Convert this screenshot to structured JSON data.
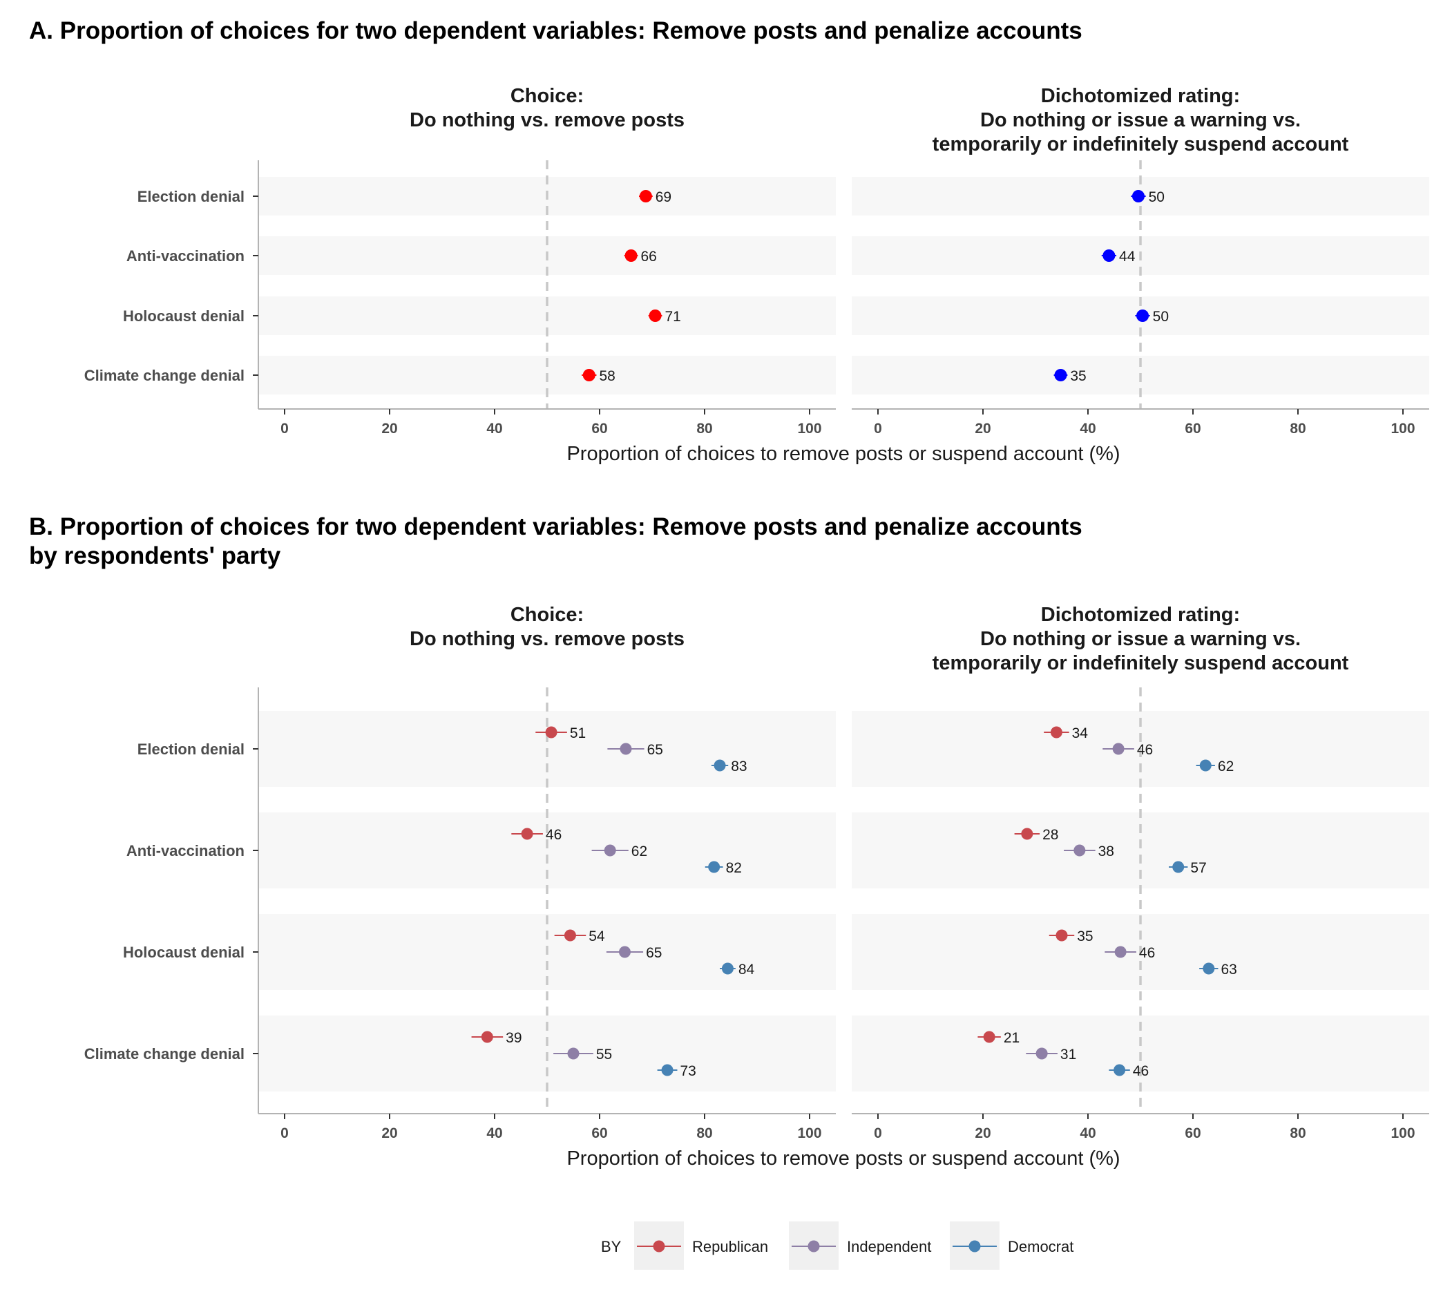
{
  "colors": {
    "panel_a_choice": "#ff0000",
    "panel_a_rating": "#0000ff",
    "Republican": "#c8484d",
    "Independent": "#8e7fa6",
    "Democrat": "#4682b4",
    "band": "#f7f7f7",
    "refline": "#c8c8c8",
    "axis": "#b3b3b3"
  },
  "shared": {
    "panel_titles": [
      "Choice:\nDo nothing vs. remove posts",
      "Dichotomized rating:\nDo nothing or issue a warning vs.\ntemporarily or indefinitely suspend account"
    ],
    "xlabel": "Proportion of choices to remove posts or suspend account (%)",
    "categories": [
      "Election denial",
      "Anti-vaccination",
      "Holocaust denial",
      "Climate change denial"
    ],
    "xticks": [
      0,
      20,
      40,
      60,
      80,
      100
    ],
    "xlim": [
      -5,
      105
    ],
    "reference_line": 50
  },
  "legend": {
    "title": "BY",
    "entries": [
      "Republican",
      "Independent",
      "Democrat"
    ]
  },
  "chart_data": [
    {
      "type": "scatter",
      "title": "A. Proportion of choices for two dependent variables: Remove posts and penalize accounts",
      "panels": [
        {
          "title": "Choice:\nDo nothing vs. remove posts",
          "series": [
            {
              "values": [
                68.8,
                66.0,
                70.6,
                58.0
              ],
              "ci": [
                1.3,
                1.3,
                1.3,
                1.4
              ],
              "labels": [
                "69",
                "66",
                "71",
                "58"
              ]
            }
          ]
        },
        {
          "title": "Dichotomized rating:\nDo nothing or issue a warning vs.\ntemporarily or indefinitely suspend account",
          "series": [
            {
              "values": [
                49.6,
                44.0,
                50.4,
                34.8
              ],
              "ci": [
                1.4,
                1.4,
                1.4,
                1.3
              ],
              "labels": [
                "50",
                "44",
                "50",
                "35"
              ]
            }
          ]
        }
      ]
    },
    {
      "type": "scatter",
      "title": "B. Proportion of choices for two dependent variables: Remove posts and penalize accounts\nby respondents' party",
      "panels": [
        {
          "title": "Choice:\nDo nothing vs. remove posts",
          "series": [
            {
              "name": "Republican",
              "values": [
                50.8,
                46.2,
                54.4,
                38.6
              ],
              "ci": [
                3.0,
                3.0,
                3.0,
                3.0
              ],
              "labels": [
                "51",
                "46",
                "54",
                "39"
              ]
            },
            {
              "name": "Independent",
              "values": [
                65.0,
                62.0,
                64.8,
                55.0
              ],
              "ci": [
                3.5,
                3.5,
                3.5,
                3.8
              ],
              "labels": [
                "65",
                "62",
                "65",
                "55"
              ]
            },
            {
              "name": "Democrat",
              "values": [
                82.9,
                81.8,
                84.4,
                72.9
              ],
              "ci": [
                1.6,
                1.7,
                1.5,
                1.9
              ],
              "labels": [
                "83",
                "82",
                "84",
                "73"
              ]
            }
          ]
        },
        {
          "title": "Dichotomized rating:\nDo nothing or issue a warning vs.\ntemporarily or indefinitely suspend account",
          "series": [
            {
              "name": "Republican",
              "values": [
                34.0,
                28.4,
                35.0,
                21.2
              ],
              "ci": [
                2.4,
                2.4,
                2.4,
                2.2
              ],
              "labels": [
                "34",
                "28",
                "35",
                "21"
              ]
            },
            {
              "name": "Independent",
              "values": [
                45.8,
                38.4,
                46.2,
                31.2
              ],
              "ci": [
                3.0,
                3.0,
                3.0,
                3.0
              ],
              "labels": [
                "46",
                "38",
                "46",
                "31"
              ]
            },
            {
              "name": "Democrat",
              "values": [
                62.4,
                57.2,
                63.0,
                46.0
              ],
              "ci": [
                1.8,
                1.8,
                1.8,
                2.0
              ],
              "labels": [
                "62",
                "57",
                "63",
                "46"
              ]
            }
          ]
        }
      ]
    }
  ]
}
